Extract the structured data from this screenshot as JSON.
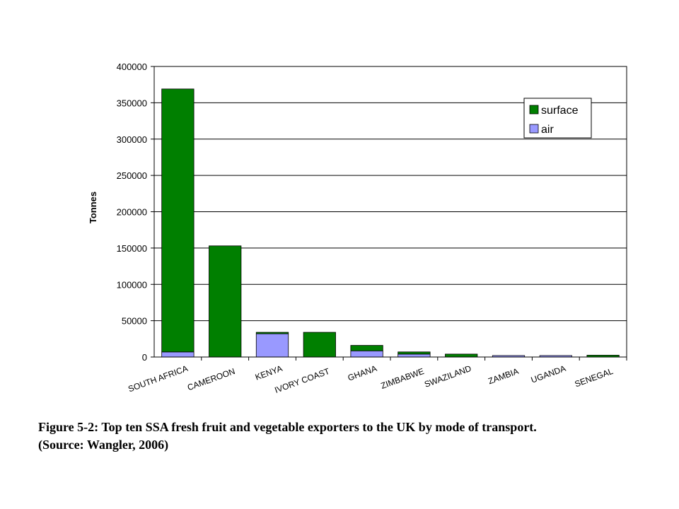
{
  "chart_data": {
    "type": "bar",
    "stacked": true,
    "ylabel": "Tonnes",
    "xlabel": "",
    "ylim": [
      0,
      400000
    ],
    "yticks": [
      0,
      50000,
      100000,
      150000,
      200000,
      250000,
      300000,
      350000,
      400000
    ],
    "grid": true,
    "legend_position": "top-right",
    "categories": [
      "SOUTH AFRICA",
      "CAMEROON",
      "KENYA",
      "IVORY COAST",
      "GHANA",
      "ZIMBABWE",
      "SWAZILAND",
      "ZAMBIA",
      "UGANDA",
      "SENEGAL"
    ],
    "series": [
      {
        "name": "air",
        "color": "#9999ff",
        "values": [
          7000,
          0,
          32000,
          0,
          8500,
          4000,
          0,
          2000,
          2000,
          0
        ]
      },
      {
        "name": "surface",
        "color": "#007f00",
        "values": [
          362000,
          153000,
          2000,
          34000,
          7500,
          3000,
          4000,
          0,
          0,
          2500
        ]
      }
    ],
    "legend_order": [
      "surface",
      "air"
    ]
  },
  "caption": {
    "line1": "Figure 5-2: Top ten SSA fresh fruit and vegetable exporters to the UK by mode of transport.",
    "line2": "(Source: Wangler, 2006)"
  }
}
